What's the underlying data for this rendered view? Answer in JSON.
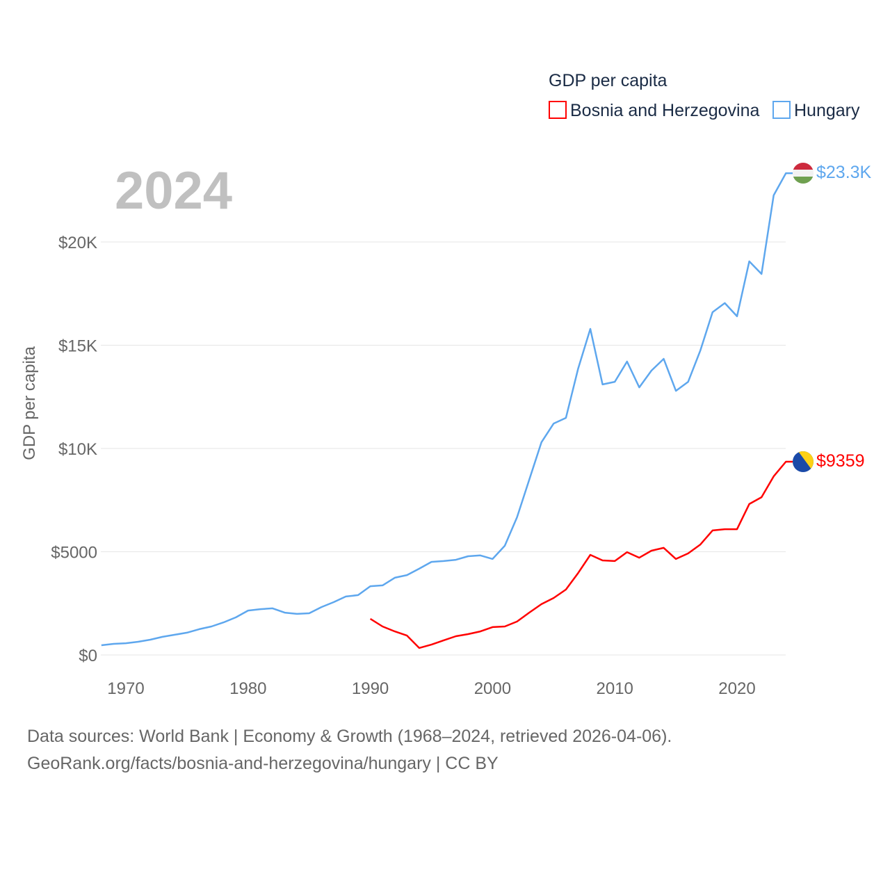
{
  "chart_data": {
    "type": "line",
    "title": "GDP per capita",
    "year_label": "2024",
    "xlabel": "",
    "ylabel": "GDP per capita",
    "xlim": [
      1968,
      2024
    ],
    "ylim": [
      0,
      23500
    ],
    "x_ticks": [
      1970,
      1980,
      1990,
      2000,
      2010,
      2020
    ],
    "x_tick_labels": [
      "1970",
      "1980",
      "1990",
      "2000",
      "2010",
      "2020"
    ],
    "y_ticks": [
      0,
      5000,
      10000,
      15000,
      20000
    ],
    "y_tick_labels": [
      "$0",
      "$5000",
      "$10K",
      "$15K",
      "$20K"
    ],
    "grid": true,
    "legend_position": "top-right",
    "series": [
      {
        "name": "Bosnia and Herzegovina",
        "color": "#ff0000",
        "end_label": "$9359",
        "flag": "bosnia-flag",
        "start_year": 1990,
        "values": [
          1750,
          1380,
          1140,
          940,
          340,
          500,
          710,
          910,
          1010,
          1140,
          1350,
          1380,
          1620,
          2050,
          2460,
          2760,
          3170,
          3970,
          4850,
          4580,
          4550,
          4980,
          4710,
          5050,
          5190,
          4650,
          4920,
          5350,
          6030,
          6090,
          6090,
          7310,
          7640,
          8650,
          9359
        ]
      },
      {
        "name": "Hungary",
        "color": "#5ea7ee",
        "end_label": "$23.3K",
        "flag": "hungary-flag",
        "start_year": 1968,
        "values": [
          470,
          540,
          570,
          640,
          740,
          880,
          980,
          1080,
          1250,
          1380,
          1580,
          1820,
          2150,
          2220,
          2260,
          2050,
          1990,
          2020,
          2320,
          2560,
          2830,
          2900,
          3330,
          3370,
          3740,
          3870,
          4180,
          4510,
          4550,
          4610,
          4780,
          4820,
          4650,
          5290,
          6670,
          8480,
          10300,
          11210,
          11480,
          13870,
          15790,
          13100,
          13230,
          14210,
          12960,
          13770,
          14340,
          12790,
          13230,
          14750,
          16600,
          17040,
          16400,
          19060,
          18450,
          22260,
          23330
        ]
      }
    ]
  },
  "footer": {
    "line1": "Data sources: World Bank | Economy & Growth (1968–2024, retrieved 2026-04-06).",
    "line2": "GeoRank.org/facts/bosnia-and-herzegovina/hungary | CC BY"
  }
}
